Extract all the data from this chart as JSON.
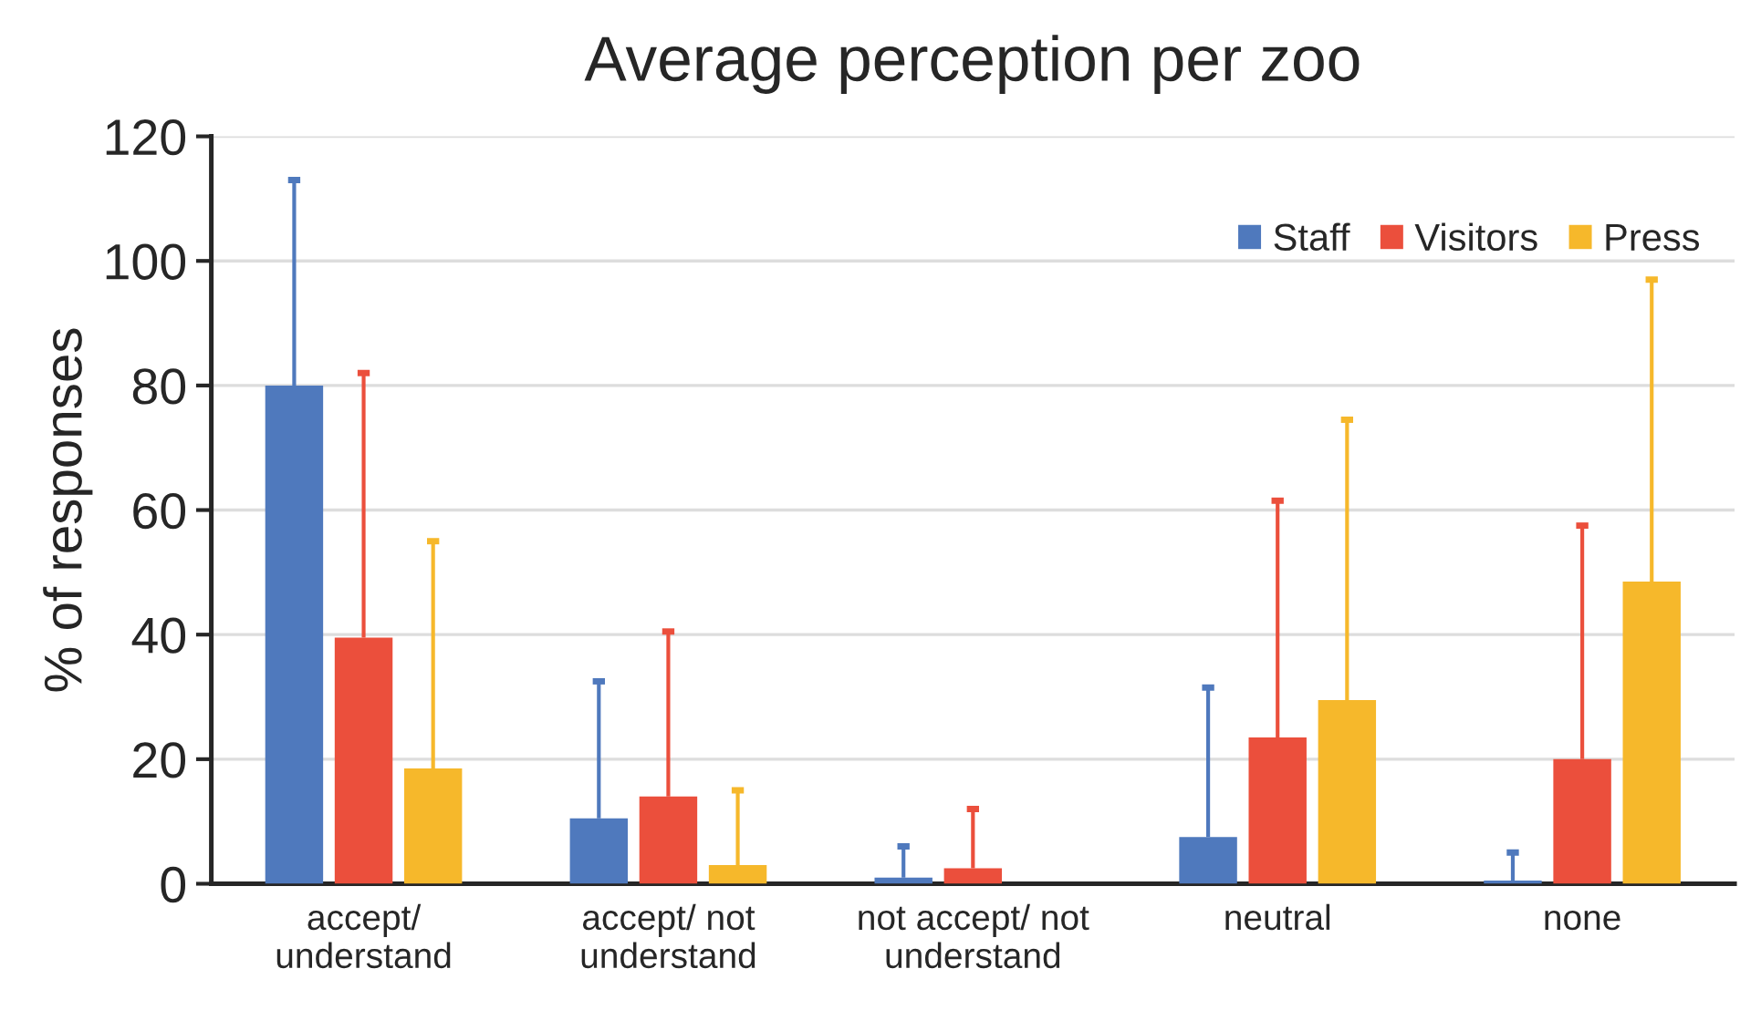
{
  "chart_data": {
    "type": "bar",
    "title": "Average perception per zoo",
    "ylabel": "% of responses",
    "categories": [
      "accept/\nunderstand",
      "accept/ not\nunderstand",
      "not accept/ not\nunderstand",
      "neutral",
      "none"
    ],
    "series": [
      {
        "name": "Staff",
        "color": "#4f79bd",
        "values": [
          80,
          10.5,
          1,
          7.5,
          0.5
        ],
        "errors": [
          [
            80,
            113
          ],
          [
            10.5,
            32.5
          ],
          [
            1,
            6
          ],
          [
            7.5,
            31.5
          ],
          [
            0.5,
            5
          ]
        ]
      },
      {
        "name": "Visitors",
        "color": "#eb4f3c",
        "values": [
          39.5,
          14,
          2.5,
          23.5,
          20
        ],
        "errors": [
          [
            39.5,
            82
          ],
          [
            14,
            40.5
          ],
          [
            2.5,
            12
          ],
          [
            23.5,
            61.5
          ],
          [
            20,
            57.5
          ]
        ]
      },
      {
        "name": "Press",
        "color": "#f6b82b",
        "values": [
          18.5,
          3,
          null,
          29.5,
          48.5
        ],
        "errors": [
          [
            18.5,
            55
          ],
          [
            3,
            15
          ],
          null,
          [
            29.5,
            74.5
          ],
          [
            48.5,
            97
          ]
        ]
      }
    ],
    "ylim": [
      0,
      120
    ],
    "yticks": [
      0,
      20,
      40,
      60,
      80,
      100,
      120
    ],
    "grid": "y",
    "legend": "top right"
  }
}
